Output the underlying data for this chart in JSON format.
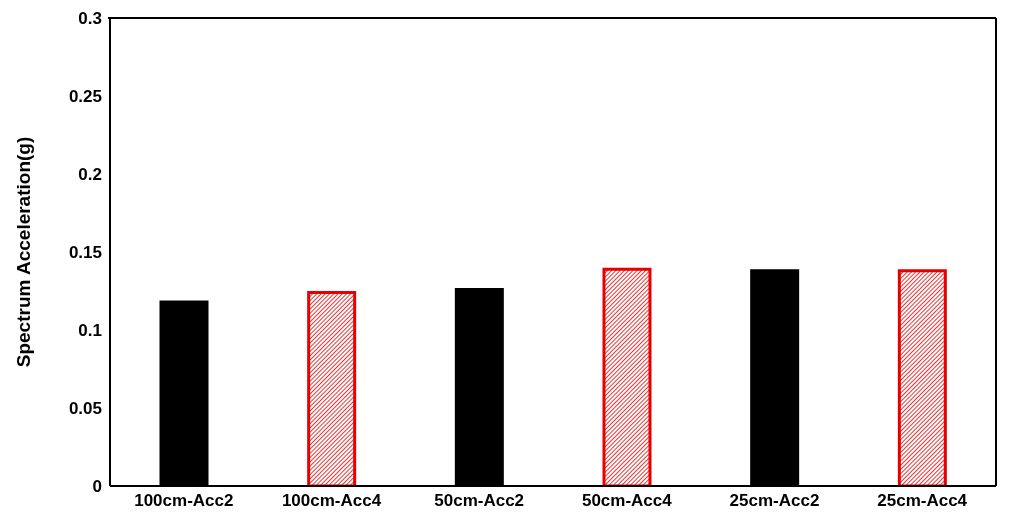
{
  "chart_data": {
    "type": "bar",
    "ylabel": "Spectrum Acceleration(g)",
    "categories": [
      "100cm-Acc2",
      "100cm-Acc4",
      "50cm-Acc2",
      "50cm-Acc4",
      "25cm-Acc2",
      "25cm-Acc4"
    ],
    "values": [
      0.118,
      0.124,
      0.126,
      0.139,
      0.138,
      0.138
    ],
    "colors": [
      "#000000",
      "#e60000",
      "#000000",
      "#e60000",
      "#000000",
      "#e60000"
    ],
    "ylim": [
      0,
      0.3
    ],
    "yticks": [
      0,
      0.05,
      0.1,
      0.15,
      0.2,
      0.25,
      0.3
    ],
    "grid": false,
    "legend": false
  }
}
